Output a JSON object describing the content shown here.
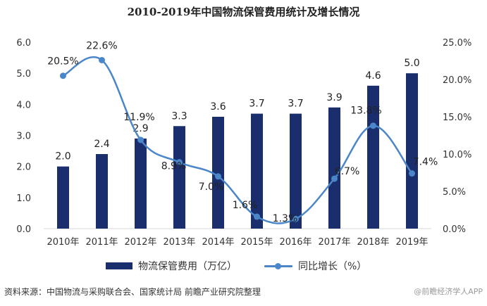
{
  "title": "2010-2019年中国物流保管费用统计及增长情况",
  "colors": {
    "bar": "#1a2e6e",
    "line": "#4a86c8",
    "grid": "#d9d9d9"
  },
  "chart_data": {
    "type": "bar",
    "title": "2010-2019年中国物流保管费用统计及增长情况",
    "categories": [
      "2010年",
      "2011年",
      "2012年",
      "2013年",
      "2014年",
      "2015年",
      "2016年",
      "2017年",
      "2018年",
      "2019年"
    ],
    "series": [
      {
        "name": "物流保管费用（万亿）",
        "type": "bar",
        "axis": "left",
        "values": [
          2.0,
          2.4,
          2.9,
          3.3,
          3.6,
          3.7,
          3.7,
          3.9,
          4.6,
          5.0
        ],
        "labels": [
          "2.0",
          "2.4",
          "2.9",
          "3.3",
          "3.6",
          "3.7",
          "3.7",
          "3.9",
          "4.6",
          "5.0"
        ]
      },
      {
        "name": "同比增长（%）",
        "type": "line",
        "axis": "right",
        "values": [
          20.5,
          22.6,
          11.9,
          8.9,
          7.0,
          1.6,
          1.3,
          6.7,
          13.8,
          7.4
        ],
        "labels": [
          "20.5%",
          "22.6%",
          "11.9%",
          "8.9%",
          "7.0%",
          "1.6%",
          "1.3%",
          "6.7%",
          "13.8%",
          "7.4%"
        ]
      }
    ],
    "y_left": {
      "ylim": [
        0,
        6
      ],
      "ticks": [
        "0.0",
        "1.0",
        "2.0",
        "3.0",
        "4.0",
        "5.0",
        "6.0"
      ]
    },
    "y_right": {
      "ylim": [
        0,
        25
      ],
      "ticks": [
        "0.0%",
        "5.0%",
        "10.0%",
        "15.0%",
        "20.0%",
        "25.0%"
      ]
    },
    "grid": false,
    "legend": "bottom"
  },
  "legend": {
    "bar_label": "物流保管费用（万亿）",
    "line_label": "同比增长（%）"
  },
  "source": "资料来源：中国物流与采购联合会、国家统计局 前瞻产业研究院整理",
  "watermark": "@前瞻经济学人APP"
}
